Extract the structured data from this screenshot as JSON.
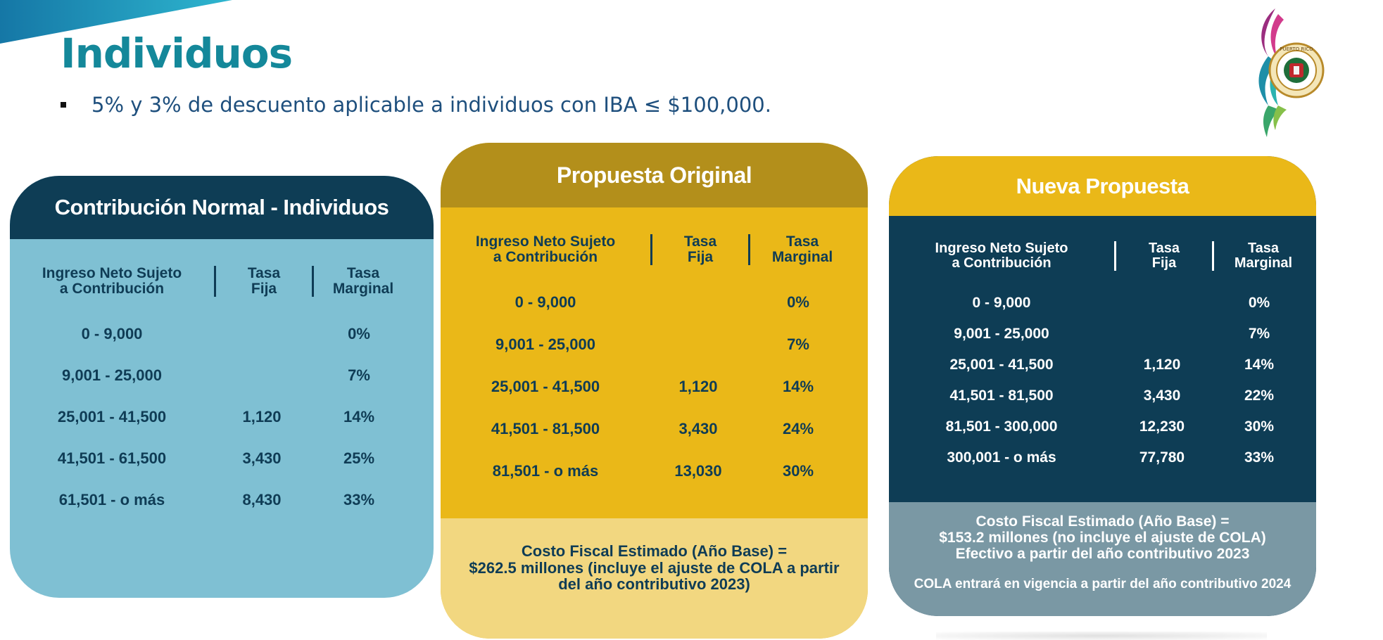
{
  "title": "Individuos",
  "bullet": "5% y 3% de descuento aplicable a  individuos con IBA ≤ $100,000.",
  "logo": {
    "icon": "gobierno-de-puerto-rico-seal",
    "text": "GOBIERNO DE PUERTO RICO"
  },
  "colors": {
    "teal": "#14889a",
    "navy": "#0e3d55",
    "light_blue": "#7fc0d3",
    "gold": "#eab818",
    "dark_gold": "#b38f1b",
    "pale_gold": "#f2d780",
    "slate": "#7a98a4"
  },
  "table_header": {
    "col1_line1": "Ingreso Neto Sujeto",
    "col1_line2": "a Contribución",
    "col2_line1": "Tasa",
    "col2_line2": "Fija",
    "col3_line1": "Tasa",
    "col3_line2": "Marginal"
  },
  "card1": {
    "title": "Contribución Normal - Individuos",
    "rows": [
      {
        "range": "0 - 9,000",
        "fija": "",
        "marginal": "0%"
      },
      {
        "range": "9,001 - 25,000",
        "fija": "",
        "marginal": "7%"
      },
      {
        "range": "25,001 - 41,500",
        "fija": "1,120",
        "marginal": "14%"
      },
      {
        "range": "41,501 - 61,500",
        "fija": "3,430",
        "marginal": "25%"
      },
      {
        "range": "61,501 - o más",
        "fija": "8,430",
        "marginal": "33%"
      }
    ]
  },
  "card2": {
    "title": "Propuesta Original",
    "rows": [
      {
        "range": "0 - 9,000",
        "fija": "",
        "marginal": "0%"
      },
      {
        "range": "9,001 - 25,000",
        "fija": "",
        "marginal": "7%"
      },
      {
        "range": "25,001 - 41,500",
        "fija": "1,120",
        "marginal": "14%"
      },
      {
        "range": "41,501 - 81,500",
        "fija": "3,430",
        "marginal": "24%"
      },
      {
        "range": "81,501 - o más",
        "fija": "13,030",
        "marginal": "30%"
      }
    ],
    "footer_line1": "Costo Fiscal Estimado (Año Base) =",
    "footer_line2": "$262.5 millones (incluye el ajuste de COLA a partir",
    "footer_line3": "del año contributivo 2023)"
  },
  "card3": {
    "title": "Nueva Propuesta",
    "rows": [
      {
        "range": "0 - 9,000",
        "fija": "",
        "marginal": "0%"
      },
      {
        "range": "9,001 - 25,000",
        "fija": "",
        "marginal": "7%"
      },
      {
        "range": "25,001 - 41,500",
        "fija": "1,120",
        "marginal": "14%"
      },
      {
        "range": "41,501 - 81,500",
        "fija": "3,430",
        "marginal": "22%"
      },
      {
        "range": "81,501 - 300,000",
        "fija": "12,230",
        "marginal": "30%"
      },
      {
        "range": "300,001 - o más",
        "fija": "77,780",
        "marginal": "33%"
      }
    ],
    "footer_line1": "Costo Fiscal Estimado (Año Base) =",
    "footer_line2": "$153.2 millones (no incluye el ajuste de COLA)",
    "footer_line3": "Efectivo a partir del año contributivo 2023",
    "footer_note": "COLA entrará en vigencia a partir del año contributivo 2024"
  }
}
